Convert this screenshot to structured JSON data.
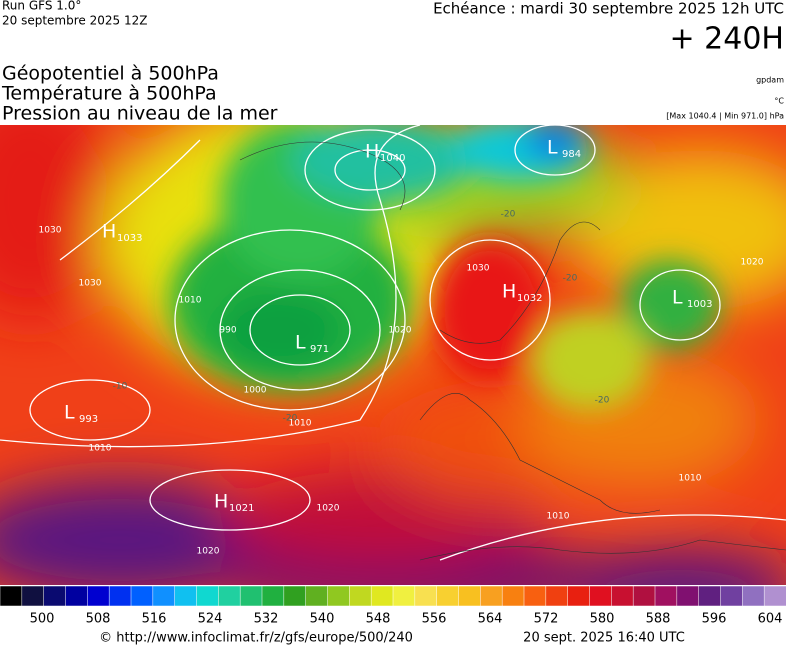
{
  "header": {
    "run": "Run GFS 1.0°",
    "run_date": "20 septembre 2025 12Z",
    "valid": "Echéance : mardi 30 septembre 2025 12h UTC",
    "lead": "+ 240H"
  },
  "titles": [
    "Géopotentiel à 500hPa",
    "Température à 500hPa",
    "Pression au niveau de la mer"
  ],
  "units": [
    "gpdam",
    "°C",
    "[Max 1040.4 | Min 971.0] hPa"
  ],
  "centers": [
    {
      "type": "H",
      "value": 1040
    },
    {
      "type": "L",
      "value": 984
    },
    {
      "type": "H",
      "value": 1033
    },
    {
      "type": "L",
      "value": 971
    },
    {
      "type": "H",
      "value": 1032
    },
    {
      "type": "L",
      "value": 1003
    },
    {
      "type": "L",
      "value": 993
    },
    {
      "type": "H",
      "value": 1021
    }
  ],
  "isobar_labels": [
    1030,
    1010,
    1020,
    1000,
    990,
    1010,
    1030,
    1020,
    1010,
    1020,
    1020,
    1010,
    1010,
    1030
  ],
  "temperature_labels": [
    -20,
    -20,
    -10,
    -20,
    -20
  ],
  "colorbar_labels": [
    500,
    508,
    516,
    524,
    532,
    540,
    548,
    556,
    564,
    572,
    580,
    588,
    596,
    604
  ],
  "footer": {
    "source": "© http://www.infoclimat.fr/z/gfs/europe/500/240",
    "timestamp": "20 sept. 2025 16:40 UTC"
  }
}
